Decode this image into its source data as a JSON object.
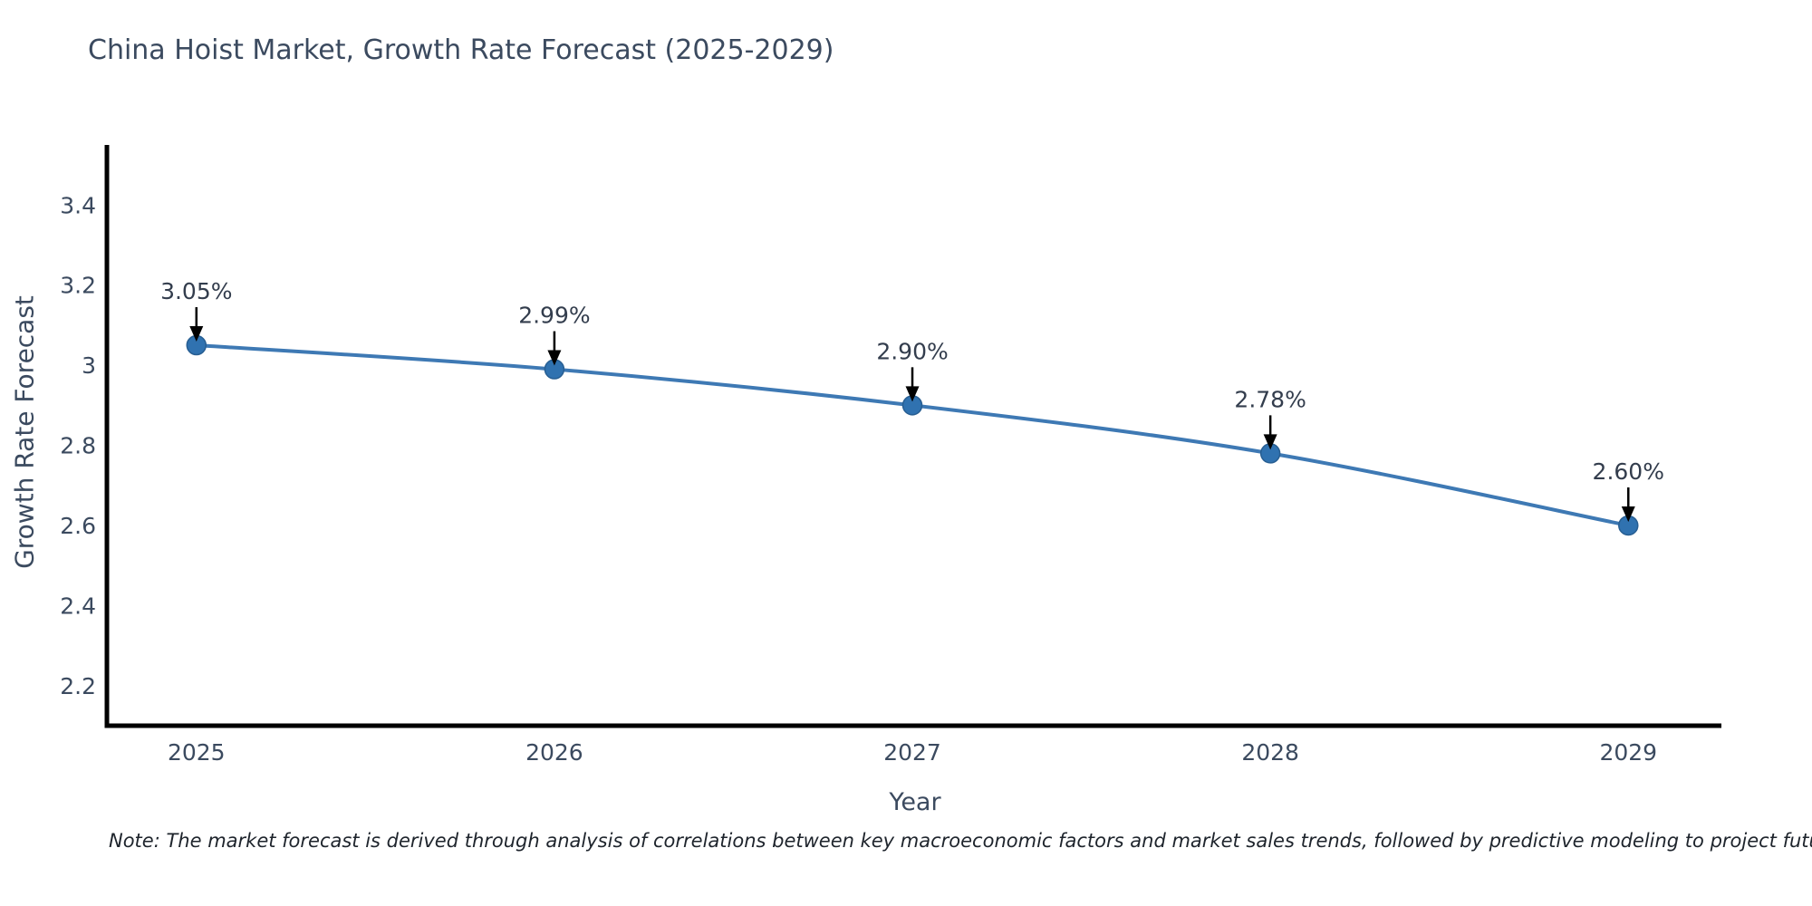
{
  "title": "China Hoist Market, Growth Rate Forecast (2025-2029)",
  "note": "Note: The market forecast is derived through analysis of correlations between key macroeconomic factors and market sales trends, followed by predictive modeling to project future sales",
  "colors": {
    "line": "#3e79b4",
    "marker": "#3072b0",
    "marker_edge": "#275e92",
    "axis_line": "#000000",
    "tick_text": "#3b4a5f",
    "annotation_text": "#333d4d"
  },
  "chart_data": {
    "type": "line",
    "x": [
      2025,
      2026,
      2027,
      2028,
      2029
    ],
    "values": [
      3.05,
      2.99,
      2.9,
      2.78,
      2.6
    ],
    "point_labels": [
      "3.05%",
      "2.99%",
      "2.90%",
      "2.78%",
      "2.60%"
    ],
    "series_name": "Growth Rate Forecast",
    "title": "China Hoist Market, Growth Rate Forecast (2025-2029)",
    "xlabel": "Year",
    "ylabel": "Growth Rate Forecast",
    "xlim": [
      2024.75,
      2029.26
    ],
    "ylim": [
      2.1,
      3.55
    ],
    "yticks": [
      2.2,
      2.4,
      2.6,
      2.8,
      3,
      3.2,
      3.4
    ],
    "xticks": [
      2025,
      2026,
      2027,
      2028,
      2029
    ],
    "grid": false,
    "legend": false,
    "annotation_style": "value labels with black down arrows above each point"
  }
}
